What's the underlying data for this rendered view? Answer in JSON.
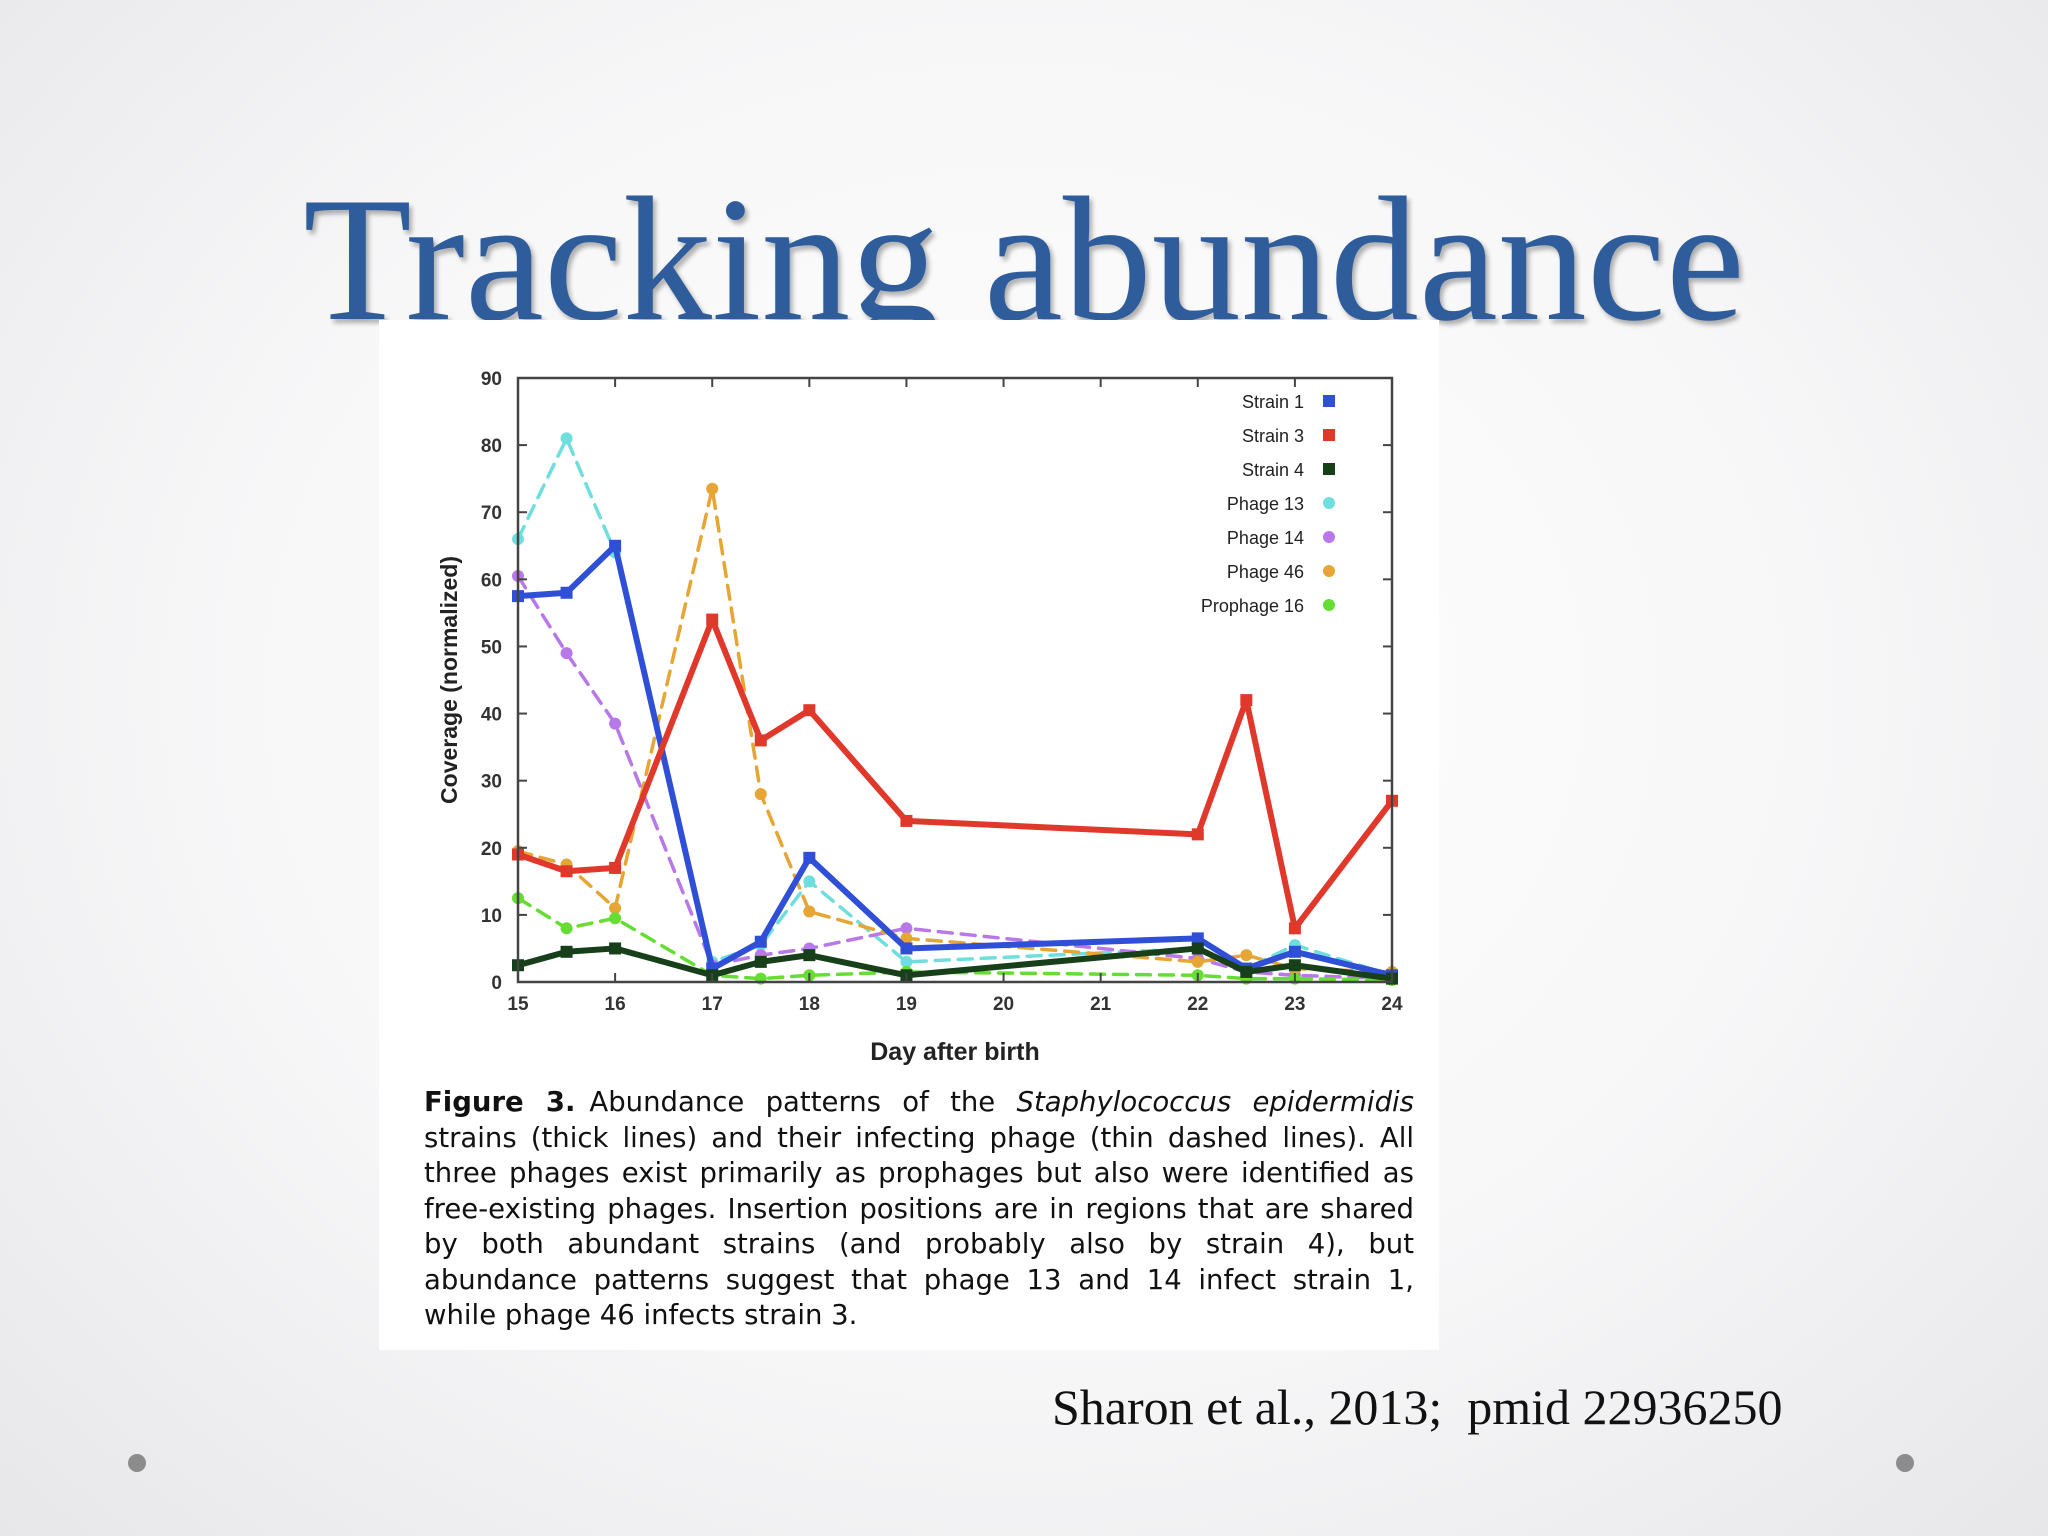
{
  "slide": {
    "title": "Tracking abundance",
    "citation": "Sharon et al., 2013;  pmid 22936250"
  },
  "caption": {
    "label": "Figure 3.",
    "text_before": "Abundance patterns of the ",
    "species": "Staphylococcus epidermidis",
    "text_after": " strains (thick lines) and their infecting phage (thin dashed lines). All three phages exist primarily as prophages but also were identified as free-existing phages. Insertion positions are in regions that are shared by both abundant strains (and probably also by strain 4), but abundance patterns suggest that phage 13 and 14 infect strain 1, while phage 46 infects strain 3."
  },
  "chart_data": {
    "type": "line",
    "title": "",
    "xlabel": "Day after birth",
    "ylabel": "Coverage (normalized)",
    "xlim": [
      15,
      24
    ],
    "ylim": [
      0,
      90
    ],
    "xticks": [
      15,
      16,
      17,
      18,
      19,
      20,
      21,
      22,
      23,
      24
    ],
    "yticks": [
      0,
      10,
      20,
      30,
      40,
      50,
      60,
      70,
      80,
      90
    ],
    "grid": false,
    "legend_position": "top-right",
    "series": [
      {
        "name": "Strain 1",
        "style": "thick",
        "marker": "square",
        "color": "#2f4fd6",
        "points": [
          [
            15,
            57.5
          ],
          [
            15.5,
            58
          ],
          [
            16,
            65
          ],
          [
            17,
            2
          ],
          [
            17.5,
            6
          ],
          [
            18,
            18.5
          ],
          [
            19,
            5
          ],
          [
            22,
            6.5
          ],
          [
            22.5,
            2
          ],
          [
            23,
            4.5
          ],
          [
            24,
            1
          ]
        ]
      },
      {
        "name": "Strain 3",
        "style": "thick",
        "marker": "square",
        "color": "#e0392b",
        "points": [
          [
            15,
            19
          ],
          [
            15.5,
            16.5
          ],
          [
            16,
            17
          ],
          [
            17,
            54
          ],
          [
            17.5,
            36
          ],
          [
            18,
            40.5
          ],
          [
            19,
            24
          ],
          [
            22,
            22
          ],
          [
            22.5,
            42
          ],
          [
            23,
            8
          ],
          [
            24,
            27
          ]
        ]
      },
      {
        "name": "Strain 4",
        "style": "thick",
        "marker": "square",
        "color": "#17401a",
        "points": [
          [
            15,
            2.5
          ],
          [
            15.5,
            4.5
          ],
          [
            16,
            5
          ],
          [
            17,
            1
          ],
          [
            17.5,
            3
          ],
          [
            18,
            4
          ],
          [
            19,
            1
          ],
          [
            22,
            5
          ],
          [
            22.5,
            1.5
          ],
          [
            23,
            2.5
          ],
          [
            24,
            0.5
          ]
        ]
      },
      {
        "name": "Phage 13",
        "style": "dashed",
        "marker": "circle",
        "color": "#6fdede",
        "points": [
          [
            15,
            66
          ],
          [
            15.5,
            81
          ],
          [
            16,
            64
          ],
          [
            17,
            3
          ],
          [
            17.5,
            5.5
          ],
          [
            18,
            15
          ],
          [
            19,
            3
          ],
          [
            22,
            5
          ],
          [
            22.5,
            2
          ],
          [
            23,
            5.5
          ],
          [
            24,
            1
          ]
        ]
      },
      {
        "name": "Phage 14",
        "style": "dashed",
        "marker": "circle",
        "color": "#b978e8",
        "points": [
          [
            15,
            60.5
          ],
          [
            15.5,
            49
          ],
          [
            16,
            38.5
          ],
          [
            17,
            2.5
          ],
          [
            17.5,
            4
          ],
          [
            18,
            5
          ],
          [
            19,
            8
          ],
          [
            22,
            3.5
          ],
          [
            22.5,
            1.5
          ],
          [
            23,
            1
          ],
          [
            24,
            0.5
          ]
        ]
      },
      {
        "name": "Phage 46",
        "style": "dashed",
        "marker": "circle",
        "color": "#e6a535",
        "points": [
          [
            15,
            19.5
          ],
          [
            15.5,
            17.5
          ],
          [
            16,
            11
          ],
          [
            17,
            73.5
          ],
          [
            17.5,
            28
          ],
          [
            18,
            10.5
          ],
          [
            19,
            6.5
          ],
          [
            22,
            3
          ],
          [
            22.5,
            4
          ],
          [
            23,
            2
          ],
          [
            24,
            1.5
          ]
        ]
      },
      {
        "name": "Prophage 16",
        "style": "dashed",
        "marker": "circle",
        "color": "#66dd33",
        "points": [
          [
            15,
            12.5
          ],
          [
            15.5,
            8
          ],
          [
            16,
            9.5
          ],
          [
            17,
            1
          ],
          [
            17.5,
            0.5
          ],
          [
            18,
            1
          ],
          [
            19,
            1.5
          ],
          [
            22,
            1
          ],
          [
            22.5,
            0.5
          ],
          [
            23,
            0.5
          ],
          [
            24,
            0.3
          ]
        ]
      }
    ]
  }
}
